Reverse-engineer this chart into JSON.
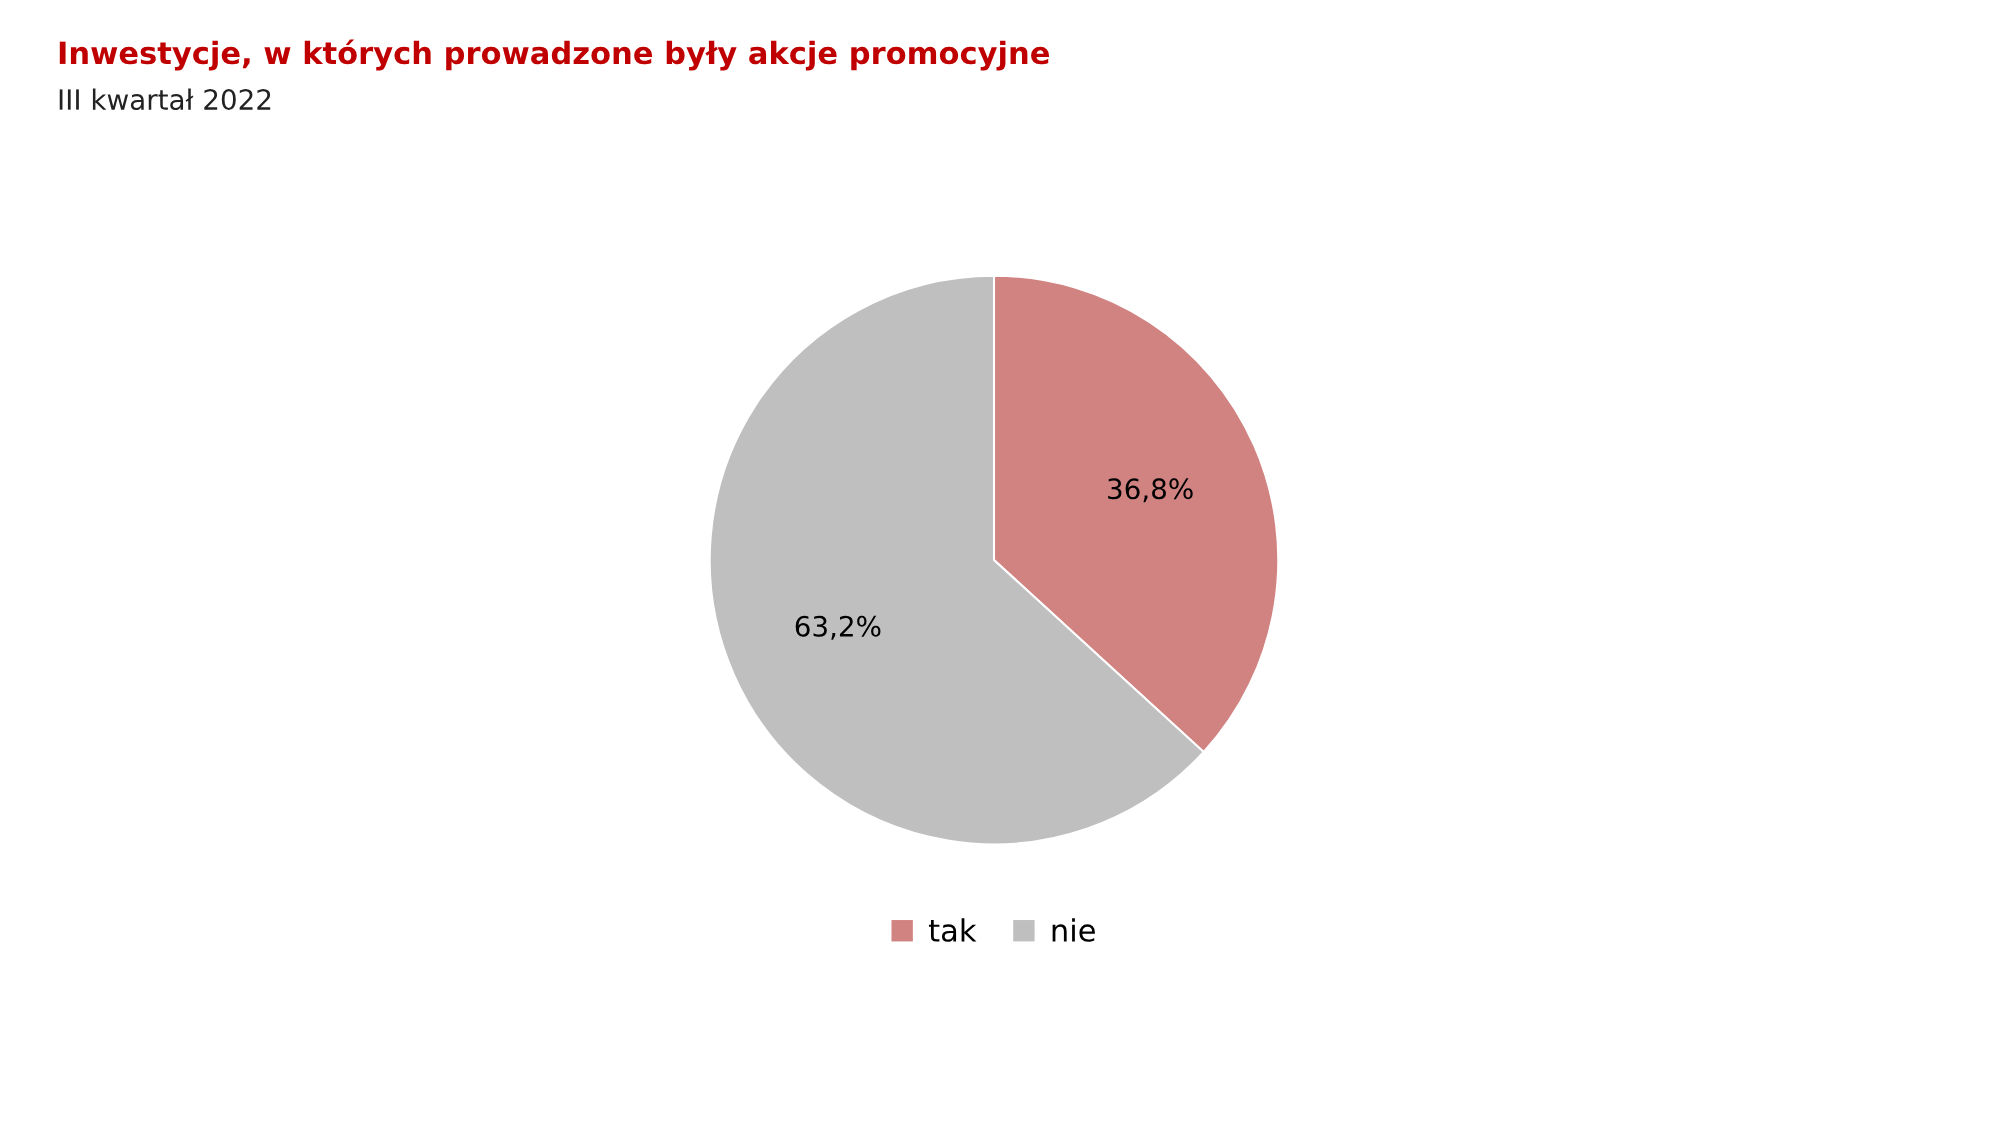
{
  "chart_data": {
    "type": "pie",
    "title": "Inwestycje, w których prowadzone były akcje promocyjne",
    "subtitle": "III kwartał 2022",
    "categories": [
      "tak",
      "nie"
    ],
    "values": [
      36.8,
      63.2
    ],
    "colors": [
      "#d18382",
      "#bfbfbf"
    ],
    "value_labels": [
      "36,8%",
      "63,2%"
    ],
    "legend": "bottom"
  }
}
